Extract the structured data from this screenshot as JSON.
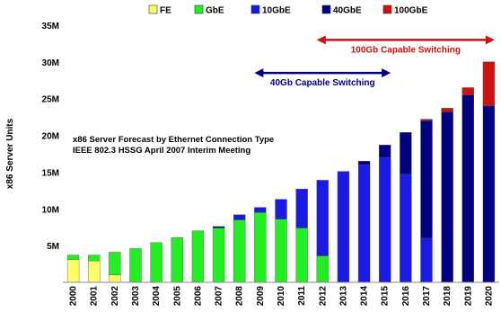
{
  "chart_data": {
    "type": "bar",
    "stacked": true,
    "ylabel": "x86 Server Units",
    "ylim": [
      0,
      35000000
    ],
    "ytick_values": [
      5000000,
      10000000,
      15000000,
      20000000,
      25000000,
      30000000,
      35000000
    ],
    "ytick_labels": [
      "5M",
      "10M",
      "15M",
      "20M",
      "25M",
      "30M",
      "35M"
    ],
    "grid": false,
    "legend_position": "top",
    "categories": [
      "2000",
      "2001",
      "2002",
      "2003",
      "2004",
      "2005",
      "2006",
      "2007",
      "2008",
      "2009",
      "2010",
      "2011",
      "2012",
      "2013",
      "2014",
      "2015",
      "2016",
      "2017",
      "2018",
      "2019",
      "2020"
    ],
    "series": [
      {
        "name": "FE",
        "color": "#ffff66",
        "values": [
          3100000,
          2900000,
          1000000,
          0,
          0,
          0,
          0,
          0,
          0,
          0,
          0,
          0,
          0,
          0,
          0,
          0,
          0,
          0,
          0,
          0,
          0
        ]
      },
      {
        "name": "GbE",
        "color": "#22ee22",
        "values": [
          600000,
          800000,
          3100000,
          4600000,
          5400000,
          6100000,
          7000000,
          7400000,
          8500000,
          9500000,
          8600000,
          7400000,
          3600000,
          0,
          0,
          0,
          0,
          0,
          0,
          0,
          0
        ]
      },
      {
        "name": "10GbE",
        "color": "#1a1ae6",
        "values": [
          0,
          0,
          0,
          0,
          0,
          0,
          0,
          0,
          700000,
          700000,
          2700000,
          5300000,
          10300000,
          15100000,
          16000000,
          17000000,
          14700000,
          6000000,
          0,
          0,
          0
        ]
      },
      {
        "name": "40GbE",
        "color": "#000080",
        "values": [
          0,
          0,
          0,
          0,
          0,
          0,
          0,
          200000,
          0,
          0,
          0,
          0,
          0,
          0,
          500000,
          1700000,
          5700000,
          16000000,
          23200000,
          25500000,
          24000000
        ]
      },
      {
        "name": "100GbE",
        "color": "#cc1111",
        "values": [
          0,
          0,
          0,
          0,
          0,
          0,
          0,
          0,
          0,
          0,
          0,
          0,
          0,
          0,
          0,
          0,
          0,
          200000,
          500000,
          1000000,
          6000000
        ]
      }
    ],
    "annotation_lines": [
      "x86 Server Forecast by Ethernet Connection Type",
      "IEEE 802.3 HSSG  April 2007 Interim Meeting"
    ],
    "arrows": [
      {
        "label": "100Gb Capable Switching",
        "color": "#cc1111",
        "from": "2012",
        "to": "2020",
        "y": 33000000
      },
      {
        "label": "40Gb Capable Switching",
        "color": "#000080",
        "from": "2009",
        "to": "2015",
        "y": 28500000
      }
    ]
  }
}
